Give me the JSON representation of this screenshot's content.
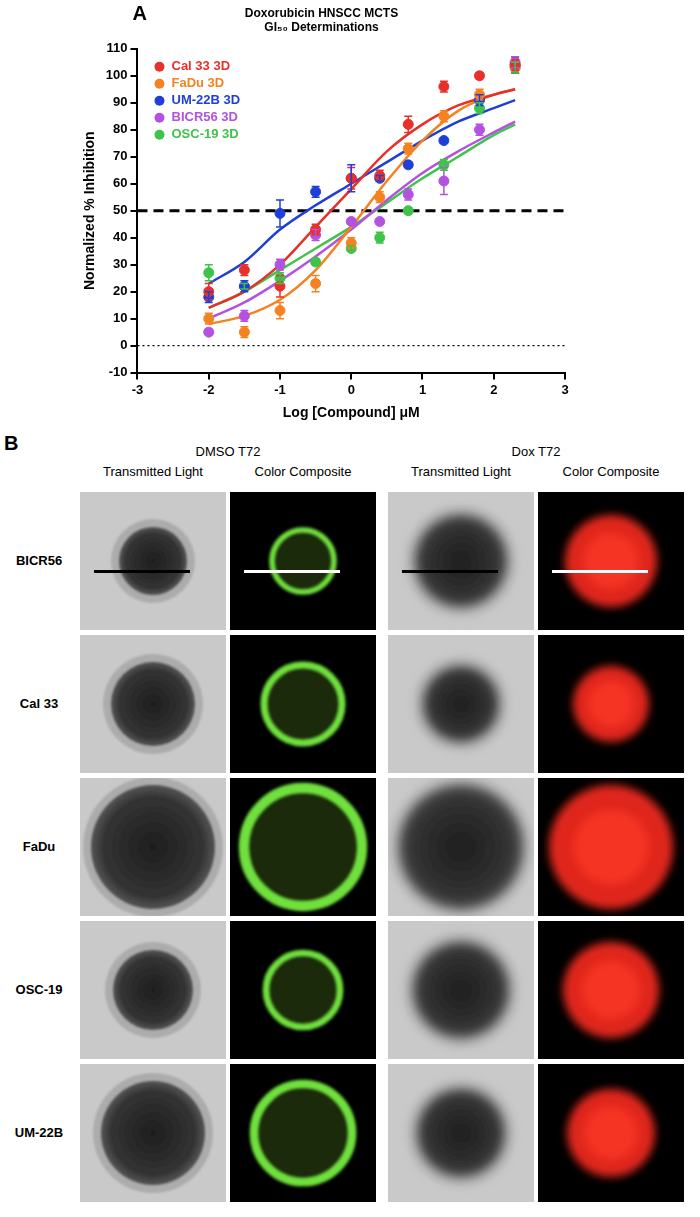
{
  "chart_data": {
    "type": "scatter",
    "panel_label": "A",
    "title": "Doxorubicin HNSCC MCTS",
    "subtitle": "GI₅₀ Determinations",
    "x_label": "Log [Compound] μM",
    "y_label": "Normalized % Inhibition",
    "xlim": [
      -3,
      3
    ],
    "xticks": [
      -3,
      -2,
      -1,
      0,
      1,
      2,
      3
    ],
    "ylim": [
      -10,
      110
    ],
    "yticks": [
      -10,
      0,
      10,
      20,
      30,
      40,
      50,
      60,
      70,
      80,
      90,
      100,
      110
    ],
    "grid": false,
    "legend": "top-left",
    "hlines": [
      {
        "y": 50,
        "line_style": "dashed"
      },
      {
        "y": 0,
        "line_style": "dotted"
      }
    ],
    "series": [
      {
        "name": "Cal 33 3D",
        "color": "#e8302a",
        "marker": "circle",
        "x": [
          -2,
          -1.5,
          -1,
          -0.5,
          0,
          0.4,
          0.8,
          1.3,
          1.8,
          2.3
        ],
        "values": [
          20,
          28,
          22,
          43,
          62,
          63,
          82,
          96,
          100,
          104
        ],
        "errors": [
          3,
          2,
          4,
          2,
          4,
          2,
          3,
          2,
          1,
          2
        ],
        "fit": {
          "x": [
            -2,
            -1.5,
            -1,
            -0.5,
            0,
            0.5,
            1,
            1.5,
            2,
            2.3
          ],
          "values": [
            14,
            20,
            30,
            44,
            58,
            72,
            82,
            89,
            93,
            95
          ]
        }
      },
      {
        "name": "FaDu 3D",
        "color": "#f58220",
        "marker": "circle",
        "x": [
          -2,
          -1.5,
          -1,
          -0.5,
          0,
          0.4,
          0.8,
          1.3,
          1.8,
          2.3
        ],
        "values": [
          10,
          5,
          13,
          23,
          38,
          55,
          73,
          85,
          93,
          103
        ],
        "errors": [
          2,
          2,
          3,
          3,
          2,
          2,
          2,
          2,
          2,
          2
        ],
        "fit": {
          "x": [
            -2,
            -1.5,
            -1,
            -0.5,
            0,
            0.5,
            1,
            1.5,
            2,
            2.3
          ],
          "values": [
            8,
            11,
            17,
            28,
            44,
            61,
            76,
            87,
            93,
            95
          ]
        }
      },
      {
        "name": "UM-22B 3D",
        "color": "#1f3fd6",
        "marker": "circle",
        "x": [
          -2,
          -1.5,
          -1,
          -0.5,
          0,
          0.4,
          0.8,
          1.3,
          1.8,
          2.3
        ],
        "values": [
          18,
          22,
          49,
          57,
          62,
          62,
          67,
          76,
          91,
          104
        ],
        "errors": [
          2,
          2,
          5,
          2,
          5,
          1,
          1,
          1,
          2,
          3
        ],
        "fit": {
          "x": [
            -2,
            -1.5,
            -1,
            -0.5,
            0,
            0.5,
            1,
            1.5,
            2,
            2.3
          ],
          "values": [
            23,
            31,
            43,
            52,
            60,
            68,
            76,
            83,
            88,
            91
          ]
        }
      },
      {
        "name": "BICR56 3D",
        "color": "#b352e0",
        "marker": "circle",
        "x": [
          -2,
          -1.5,
          -1,
          -0.5,
          0,
          0.4,
          0.8,
          1.3,
          1.8,
          2.3
        ],
        "values": [
          5,
          11,
          30,
          41,
          46,
          46,
          56,
          61,
          80,
          105
        ],
        "errors": [
          1,
          2,
          2,
          2,
          1,
          1,
          2,
          5,
          2,
          2
        ],
        "fit": {
          "x": [
            -2,
            -1.5,
            -1,
            -0.5,
            0,
            0.5,
            1,
            1.5,
            2,
            2.3
          ],
          "values": [
            10,
            16,
            24,
            33,
            43,
            54,
            64,
            72,
            79,
            83
          ]
        }
      },
      {
        "name": "OSC-19 3D",
        "color": "#3ec44a",
        "marker": "circle",
        "x": [
          -2,
          -1.5,
          -1,
          -0.5,
          0,
          0.4,
          0.8,
          1.3,
          1.8,
          2.3
        ],
        "values": [
          27,
          22,
          25,
          31,
          36,
          40,
          50,
          67,
          88,
          103
        ],
        "errors": [
          3,
          1,
          2,
          1,
          1,
          2,
          1,
          2,
          2,
          2
        ],
        "fit": {
          "x": [
            -2,
            -1.5,
            -1,
            -0.5,
            0,
            0.5,
            1,
            1.5,
            2,
            2.3
          ],
          "values": [
            14,
            20,
            28,
            36,
            44,
            53,
            62,
            70,
            78,
            82
          ]
        }
      }
    ]
  },
  "panel_b": {
    "panel_label": "B",
    "groups": [
      {
        "title": "DMSO T72",
        "columns": [
          "Transmitted Light",
          "Color Composite"
        ]
      },
      {
        "title": "Dox T72",
        "columns": [
          "Transmitted Light",
          "Color Composite"
        ]
      }
    ],
    "rows": [
      "BICR56",
      "Cal 33",
      "FaDu",
      "OSC-19",
      "UM-22B"
    ]
  }
}
